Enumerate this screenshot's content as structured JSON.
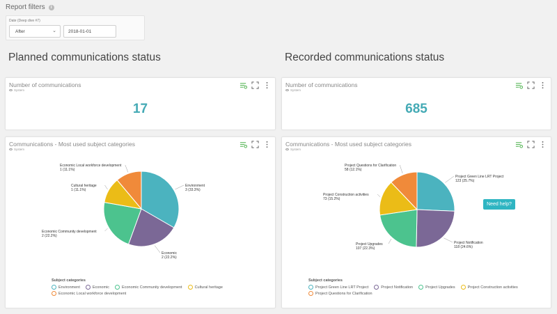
{
  "filters": {
    "title": "Report filters",
    "date_label": "Date (Deep dive #7)",
    "operator_value": "After",
    "date_value": "2018-01-01"
  },
  "sections": {
    "planned_title": "Planned communications status",
    "recorded_title": "Recorded communications status"
  },
  "cards": {
    "planned_number": {
      "title": "Number of communications",
      "sub": "System",
      "value": "17"
    },
    "recorded_number": {
      "title": "Number of communications",
      "sub": "System",
      "value": "685"
    },
    "planned_pie": {
      "title": "Communications - Most used subject categories",
      "sub": "System"
    },
    "recorded_pie": {
      "title": "Communications - Most used subject categories",
      "sub": "System"
    }
  },
  "help": {
    "label": "Need help?"
  },
  "colors": {
    "accent": "#44aab5",
    "tool_green": "#5cb85c"
  },
  "chart_data": [
    {
      "type": "pie",
      "legend_title": "Subject categories",
      "legend_position": "bottom-left",
      "slices": [
        {
          "name": "Environment",
          "value": 3,
          "percent": "33.3%",
          "color": "#4bb3bf",
          "label_line1": "Environment",
          "label_line2": "3 (33.3%)"
        },
        {
          "name": "Economic",
          "value": 2,
          "percent": "22.2%",
          "color": "#7b6896",
          "label_line1": "Economic",
          "label_line2": "2 (22.2%)"
        },
        {
          "name": "Economic Community development",
          "value": 2,
          "percent": "22.2%",
          "color": "#4cc38e",
          "label_line1": "Economic Community development",
          "label_line2": "2 (22.2%)"
        },
        {
          "name": "Cultural heritage",
          "value": 1,
          "percent": "11.1%",
          "color": "#ebbc17",
          "label_line1": "Cultural heritage",
          "label_line2": "1 (11.1%)"
        },
        {
          "name": "Economic Local workforce development",
          "value": 1,
          "percent": "11.1%",
          "color": "#f08a3a",
          "label_line1": "Economic Local workforce development",
          "label_line2": "1 (11.1%)"
        }
      ]
    },
    {
      "type": "pie",
      "legend_title": "Subject categories",
      "legend_position": "bottom-left",
      "slices": [
        {
          "name": "Project Green Line LRT Project",
          "value": 123,
          "percent": "25.7%",
          "color": "#4bb3bf",
          "label_line1": "Project Green Line LRT Project",
          "label_line2": "123 (25.7%)"
        },
        {
          "name": "Project Notification",
          "value": 118,
          "percent": "24.6%",
          "color": "#7b6896",
          "label_line1": "Project Notification",
          "label_line2": "118 (24.6%)"
        },
        {
          "name": "Project Upgrades",
          "value": 107,
          "percent": "22.3%",
          "color": "#4cc38e",
          "label_line1": "Project Upgrades",
          "label_line2": "107 (22.3%)"
        },
        {
          "name": "Project Construction activities",
          "value": 73,
          "percent": "15.2%",
          "color": "#ebbc17",
          "label_line1": "Project Construction activities",
          "label_line2": "73 (15.2%)"
        },
        {
          "name": "Project Questions for Clarification",
          "value": 58,
          "percent": "12.1%",
          "color": "#f08a3a",
          "label_line1": "Project Questions for Clarification",
          "label_line2": "58 (12.1%)"
        }
      ]
    }
  ]
}
